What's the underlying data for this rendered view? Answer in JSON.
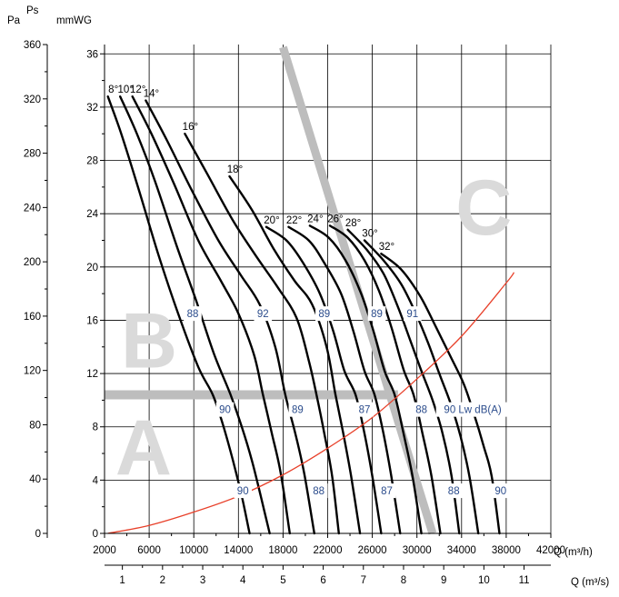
{
  "chart_data": {
    "type": "line",
    "title": "",
    "y_left_label": "Pa",
    "y_right_label": "mmWG",
    "y_top_label": "Ps",
    "x_label_top": "Q (m³/h)",
    "x_label_bottom": "Q (m³/s)",
    "x_m3h": {
      "min": 2000,
      "max": 42000,
      "ticks": [
        "2000",
        "6000",
        "10000",
        "14000",
        "18000",
        "22000",
        "26000",
        "30000",
        "34000",
        "38000",
        "42000"
      ]
    },
    "x_m3s": {
      "ticks": [
        "1",
        "2",
        "3",
        "4",
        "5",
        "6",
        "7",
        "8",
        "9",
        "10",
        "11"
      ]
    },
    "y_pa": {
      "min": 0,
      "max": 360,
      "ticks": [
        "0",
        "40",
        "80",
        "120",
        "160",
        "200",
        "240",
        "280",
        "320",
        "360"
      ]
    },
    "y_mmwg": {
      "ticks": [
        "0",
        "4",
        "8",
        "12",
        "16",
        "20",
        "24",
        "28",
        "32",
        "36"
      ]
    },
    "blade_angles": [
      {
        "label": "8°",
        "points": [
          [
            2300,
            32.8
          ],
          [
            3500,
            30.0
          ],
          [
            5000,
            26.0
          ],
          [
            6800,
            21.0
          ],
          [
            8600,
            16.5
          ],
          [
            10400,
            12.5
          ],
          [
            11700,
            10.4
          ],
          [
            12600,
            8.2
          ],
          [
            13500,
            5.5
          ],
          [
            14300,
            2.8
          ],
          [
            15000,
            0
          ]
        ]
      },
      {
        "label": "10°",
        "points": [
          [
            3400,
            32.8
          ],
          [
            4900,
            30.0
          ],
          [
            6500,
            26.5
          ],
          [
            8500,
            21.5
          ],
          [
            10200,
            17.5
          ],
          [
            11800,
            13.5
          ],
          [
            13300,
            10.4
          ],
          [
            14300,
            8.0
          ],
          [
            15200,
            5.5
          ],
          [
            16000,
            2.8
          ],
          [
            16800,
            0
          ]
        ]
      },
      {
        "label": "12°",
        "points": [
          [
            4500,
            32.8
          ],
          [
            6200,
            30.0
          ],
          [
            8200,
            26.3
          ],
          [
            10400,
            22.0
          ],
          [
            12400,
            19.0
          ],
          [
            14000,
            16.5
          ],
          [
            15400,
            13.4
          ],
          [
            16200,
            10.4
          ],
          [
            17000,
            7.5
          ],
          [
            17800,
            4.5
          ],
          [
            18600,
            0
          ]
        ]
      },
      {
        "label": "14°",
        "points": [
          [
            5700,
            32.5
          ],
          [
            7600,
            29.5
          ],
          [
            9800,
            25.8
          ],
          [
            12200,
            22.0
          ],
          [
            14200,
            19.4
          ],
          [
            15900,
            17.2
          ],
          [
            17300,
            14.0
          ],
          [
            18200,
            10.4
          ],
          [
            19100,
            7.5
          ],
          [
            19900,
            4.5
          ],
          [
            20800,
            0
          ]
        ]
      },
      {
        "label": "16°",
        "points": [
          [
            9200,
            30.0
          ],
          [
            11200,
            27.0
          ],
          [
            13500,
            23.5
          ],
          [
            15600,
            20.8
          ],
          [
            17500,
            18.5
          ],
          [
            19200,
            16.2
          ],
          [
            20300,
            13.0
          ],
          [
            21000,
            10.4
          ],
          [
            21700,
            7.5
          ],
          [
            22400,
            4.3
          ],
          [
            23000,
            0
          ]
        ]
      },
      {
        "label": "18°",
        "points": [
          [
            13200,
            26.8
          ],
          [
            15200,
            24.3
          ],
          [
            17200,
            21.3
          ],
          [
            19000,
            19.0
          ],
          [
            20600,
            17.2
          ],
          [
            21900,
            14.0
          ],
          [
            22700,
            10.4
          ],
          [
            23400,
            7.5
          ],
          [
            24100,
            4.3
          ],
          [
            24900,
            0
          ]
        ]
      },
      {
        "label": "20°",
        "points": [
          [
            16500,
            23.0
          ],
          [
            18300,
            22.0
          ],
          [
            19800,
            20.3
          ],
          [
            21300,
            18.0
          ],
          [
            22500,
            15.2
          ],
          [
            23500,
            12.2
          ],
          [
            24500,
            10.4
          ],
          [
            25300,
            7.5
          ],
          [
            26000,
            4.3
          ],
          [
            26800,
            0
          ]
        ]
      },
      {
        "label": "22°",
        "points": [
          [
            18500,
            23.0
          ],
          [
            20300,
            22.0
          ],
          [
            21700,
            20.3
          ],
          [
            23200,
            18.0
          ],
          [
            24300,
            15.2
          ],
          [
            25300,
            12.2
          ],
          [
            26200,
            10.4
          ],
          [
            27000,
            7.5
          ],
          [
            27700,
            4.3
          ],
          [
            28500,
            0
          ]
        ]
      },
      {
        "label": "24°",
        "points": [
          [
            20400,
            23.1
          ],
          [
            22100,
            22.2
          ],
          [
            23600,
            20.5
          ],
          [
            25000,
            18.0
          ],
          [
            26100,
            15.2
          ],
          [
            27100,
            12.2
          ],
          [
            28000,
            10.4
          ],
          [
            28800,
            7.5
          ],
          [
            29600,
            4.3
          ],
          [
            30400,
            0
          ]
        ]
      },
      {
        "label": "26°",
        "points": [
          [
            22200,
            23.1
          ],
          [
            23800,
            22.2
          ],
          [
            25300,
            20.5
          ],
          [
            26600,
            18.2
          ],
          [
            27700,
            15.5
          ],
          [
            28800,
            12.3
          ],
          [
            29700,
            10.4
          ],
          [
            30500,
            7.5
          ],
          [
            31300,
            4.3
          ],
          [
            32100,
            0
          ]
        ]
      },
      {
        "label": "28°",
        "points": [
          [
            23800,
            22.8
          ],
          [
            25500,
            21.3
          ],
          [
            27000,
            19.5
          ],
          [
            28300,
            17.0
          ],
          [
            29400,
            14.5
          ],
          [
            30400,
            12.2
          ],
          [
            31400,
            10.0
          ],
          [
            32300,
            7.5
          ],
          [
            33100,
            4.3
          ],
          [
            33800,
            0
          ]
        ]
      },
      {
        "label": "30°",
        "points": [
          [
            25300,
            22.0
          ],
          [
            27000,
            20.5
          ],
          [
            28600,
            18.7
          ],
          [
            29900,
            16.5
          ],
          [
            31000,
            14.3
          ],
          [
            32000,
            12.0
          ],
          [
            33000,
            9.8
          ],
          [
            33900,
            7.3
          ],
          [
            34700,
            4.3
          ],
          [
            35500,
            0
          ]
        ]
      },
      {
        "label": "32°",
        "points": [
          [
            26800,
            21.0
          ],
          [
            28600,
            19.8
          ],
          [
            30300,
            17.8
          ],
          [
            31700,
            15.5
          ],
          [
            33000,
            13.3
          ],
          [
            34200,
            11.2
          ],
          [
            35100,
            9.0
          ],
          [
            36000,
            6.5
          ],
          [
            36700,
            4.3
          ],
          [
            37400,
            0
          ]
        ]
      }
    ],
    "noise_labels": [
      {
        "text": "88",
        "x": 9900,
        "y": 16.5
      },
      {
        "text": "92",
        "x": 16200,
        "y": 16.5
      },
      {
        "text": "89",
        "x": 21700,
        "y": 16.5
      },
      {
        "text": "89",
        "x": 26400,
        "y": 16.5
      },
      {
        "text": "91",
        "x": 29600,
        "y": 16.5
      },
      {
        "text": "90",
        "x": 12800,
        "y": 9.3
      },
      {
        "text": "89",
        "x": 19300,
        "y": 9.3
      },
      {
        "text": "87",
        "x": 25300,
        "y": 9.3
      },
      {
        "text": "88",
        "x": 30400,
        "y": 9.3
      },
      {
        "text": "90 Lw dB(A)",
        "x": 35000,
        "y": 9.3
      },
      {
        "text": "90",
        "x": 14400,
        "y": 3.2
      },
      {
        "text": "88",
        "x": 21200,
        "y": 3.2
      },
      {
        "text": "87",
        "x": 27300,
        "y": 3.2
      },
      {
        "text": "88",
        "x": 33300,
        "y": 3.2
      },
      {
        "text": "90",
        "x": 37500,
        "y": 3.2
      }
    ],
    "system_curve": {
      "color": "#e8402a",
      "points": [
        [
          2300,
          0
        ],
        [
          6000,
          0.6
        ],
        [
          10000,
          1.6
        ],
        [
          14000,
          2.8
        ],
        [
          18000,
          4.4
        ],
        [
          22000,
          6.4
        ],
        [
          26000,
          8.7
        ],
        [
          30000,
          11.6
        ],
        [
          34000,
          14.8
        ],
        [
          38000,
          18.8
        ],
        [
          38700,
          19.6
        ]
      ]
    },
    "zones": [
      {
        "label": "A",
        "x": 5500,
        "y": 6.0
      },
      {
        "label": "B",
        "x": 6000,
        "y": 14.0
      },
      {
        "label": "C",
        "x": 36000,
        "y": 24.0
      }
    ],
    "zone_divider_h": {
      "from": [
        2000,
        10.4
      ],
      "to": [
        28300,
        10.4
      ]
    },
    "zone_divider_diag": {
      "from": [
        18000,
        36.5
      ],
      "to": [
        31400,
        0
      ]
    }
  }
}
